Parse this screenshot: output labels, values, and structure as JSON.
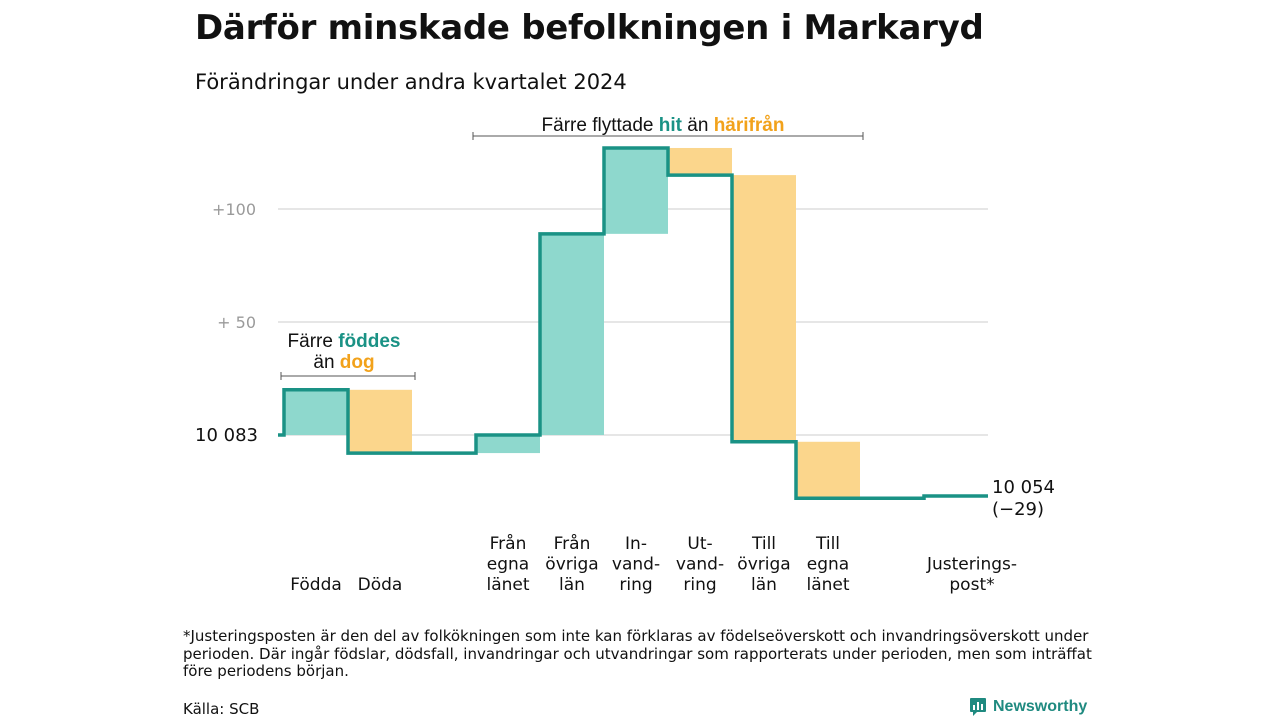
{
  "header": {
    "title": "Därför minskade befolkningen i Markaryd",
    "subtitle": "Förändringar under andra kvartalet 2024"
  },
  "colors": {
    "teal_line": "#1a9285",
    "teal_fill": "#8ed8cd",
    "orange_text": "#f2a21b",
    "orange_fill": "#fbd68c",
    "grid": "#dddddd",
    "axis_text": "#9a9a9a"
  },
  "chart_data": {
    "type": "waterfall",
    "start_value": 10083,
    "start_label": "10  083",
    "end_value": 10054,
    "end_label": "10 054",
    "end_change_label": "(−29)",
    "y_ticks": [
      {
        "value": 10183,
        "label": "+100"
      },
      {
        "value": 10133,
        "label": "+  50"
      }
    ],
    "steps": [
      {
        "category": "Födda",
        "label_lines": [
          "Födda"
        ],
        "change": 20,
        "kind": "in"
      },
      {
        "category": "Döda",
        "label_lines": [
          "Döda"
        ],
        "change": -28,
        "kind": "out"
      },
      {
        "category": "Från egna länet",
        "label_lines": [
          "Från",
          "egna",
          "länet"
        ],
        "change": 8,
        "kind": "in"
      },
      {
        "category": "Från övriga län",
        "label_lines": [
          "Från",
          "övriga",
          "län"
        ],
        "change": 89,
        "kind": "in"
      },
      {
        "category": "Invandring",
        "label_lines": [
          "In-",
          "vand-",
          "ring"
        ],
        "change": 38,
        "kind": "in"
      },
      {
        "category": "Utvandring",
        "label_lines": [
          "Ut-",
          "vand-",
          "ring"
        ],
        "change": -12,
        "kind": "out"
      },
      {
        "category": "Till övriga län",
        "label_lines": [
          "Till",
          "övriga",
          "län"
        ],
        "change": -118,
        "kind": "out"
      },
      {
        "category": "Till egna länet",
        "label_lines": [
          "Till",
          "egna",
          "länet"
        ],
        "change": -25,
        "kind": "out"
      },
      {
        "category": "Justeringspost*",
        "label_lines": [
          "Justerings-",
          "post*"
        ],
        "change": 1,
        "kind": "adjust"
      }
    ],
    "annotations": [
      {
        "id": "births",
        "parts": [
          {
            "text": "Färre ",
            "style": "plain"
          },
          {
            "text": "föddes",
            "style": "teal"
          },
          {
            "text": "än ",
            "style": "plain"
          },
          {
            "text": "dog",
            "style": "orange"
          }
        ]
      },
      {
        "id": "migration",
        "parts": [
          {
            "text": "Färre flyttade ",
            "style": "plain"
          },
          {
            "text": "hit",
            "style": "teal"
          },
          {
            "text": " än ",
            "style": "plain"
          },
          {
            "text": "härifrån",
            "style": "orange"
          }
        ]
      }
    ]
  },
  "footer": {
    "note": "*Justeringsposten är den del av folkökningen som inte kan förklaras av födelseöverskott och invandringsöverskott under perioden. Där ingår födslar, dödsfall, invandringar och utvandringar som rapporterats under perioden, men som inträffat före periodens början.",
    "source": "Källa: SCB",
    "brand": "Newsworthy"
  }
}
